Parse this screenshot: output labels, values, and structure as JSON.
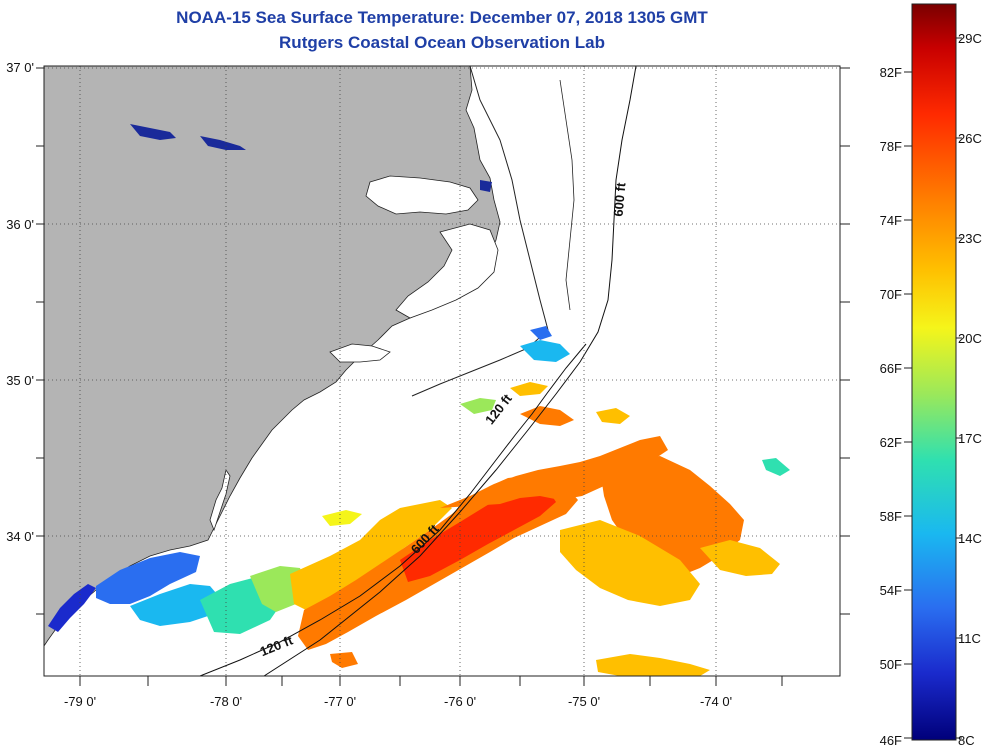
{
  "title": "NOAA-15 Sea Surface Temperature:  December 07, 2018 1305 GMT",
  "subtitle": "Rutgers Coastal Ocean Observation Lab",
  "lat_labels": [
    "37 0'",
    "36 0'",
    "35 0'",
    "34 0'"
  ],
  "lon_labels": [
    "-79 0'",
    "-78 0'",
    "-77 0'",
    "-76 0'",
    "-75 0'",
    "-74 0'"
  ],
  "contour_labels": {
    "depth_600_north": "600 ft",
    "depth_120_mid": "120 ft",
    "depth_600_south": "600 ft",
    "depth_120_south": "120 ft"
  },
  "colorbar": {
    "fahrenheit": [
      "82F",
      "78F",
      "74F",
      "70F",
      "66F",
      "62F",
      "58F",
      "54F",
      "50F",
      "46F"
    ],
    "celsius": [
      "29C",
      "26C",
      "23C",
      "20C",
      "17C",
      "14C",
      "11C",
      "8C"
    ],
    "colors": [
      "#7a0000",
      "#c80000",
      "#ff2a00",
      "#ff7a00",
      "#ffbf00",
      "#f5f51a",
      "#9be85a",
      "#2fe0b0",
      "#1ab8f0",
      "#2a6ef0",
      "#1a2acc",
      "#00007a"
    ]
  },
  "map_colors": {
    "land": "#b4b4b4",
    "ocean": "#ffffff",
    "coast": "#111111"
  }
}
